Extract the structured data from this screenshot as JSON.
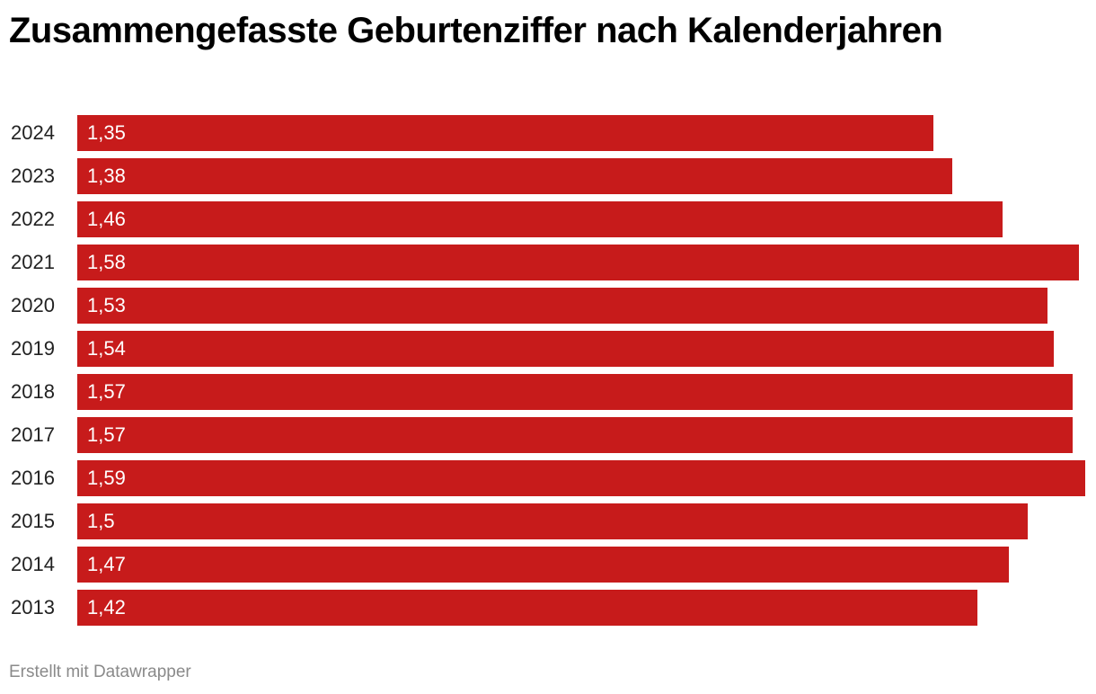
{
  "chart_data": {
    "type": "bar",
    "orientation": "horizontal",
    "title": "Zusammengefasste Geburtenziffer nach Kalenderjahren",
    "categories": [
      "2024",
      "2023",
      "2022",
      "2021",
      "2020",
      "2019",
      "2018",
      "2017",
      "2016",
      "2015",
      "2014",
      "2013"
    ],
    "values": [
      1.35,
      1.38,
      1.46,
      1.58,
      1.53,
      1.54,
      1.57,
      1.57,
      1.59,
      1.5,
      1.47,
      1.42
    ],
    "value_labels": [
      "1,35",
      "1,38",
      "1,46",
      "1,58",
      "1,53",
      "1,54",
      "1,57",
      "1,57",
      "1,59",
      "1,5",
      "1,47",
      "1,42"
    ],
    "xlim": [
      0,
      1.59
    ],
    "xlabel": "",
    "ylabel": "",
    "grid": false,
    "bar_color": "#c71b1b"
  },
  "footer": {
    "credit": "Erstellt mit Datawrapper"
  }
}
